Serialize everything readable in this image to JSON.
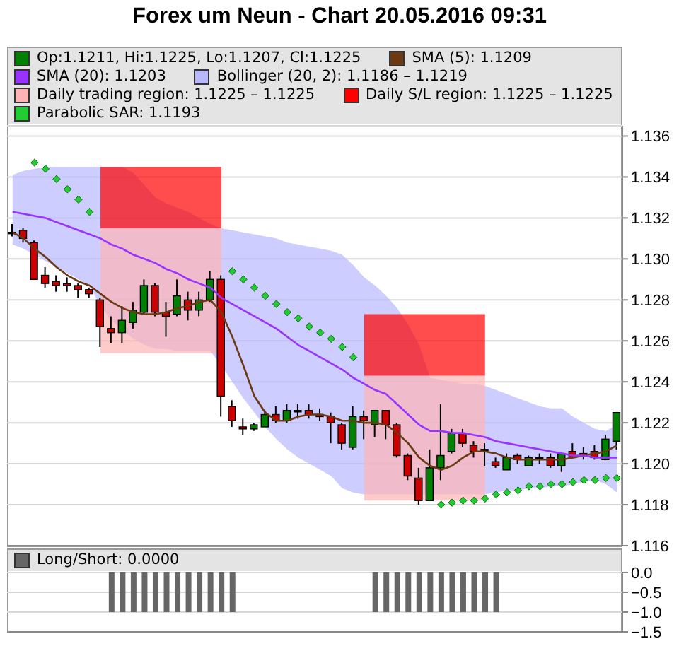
{
  "chart_data": [
    {
      "type": "candlestick",
      "title": "Forex um Neun - Chart 20.05.2016 09:31",
      "categories": [
        null,
        null,
        null,
        null,
        null,
        null,
        null,
        null,
        null,
        null,
        null,
        null,
        null,
        null,
        null,
        null,
        null,
        null,
        null,
        null,
        null,
        null,
        null,
        null,
        null,
        null,
        null,
        null,
        null,
        null,
        null,
        null,
        null,
        null,
        null,
        null,
        null,
        null,
        null,
        null,
        null,
        null,
        null,
        null,
        null,
        null,
        null,
        null,
        null,
        null,
        null,
        null,
        null,
        null,
        null,
        null
      ],
      "ylim": [
        1.116,
        1.1365
      ],
      "yticks": [
        1.116,
        1.118,
        {
          "value": 1.12,
          "label": "1.120"
        },
        1.122,
        1.124,
        1.126,
        1.128,
        {
          "value": 1.13,
          "label": "1.130"
        },
        1.132,
        1.134,
        1.136
      ],
      "grid": "y",
      "legend": "top",
      "tick_labels": "y",
      "series": [
        {
          "type": "candlestick",
          "name": "Op:1.1211, Hi:1.1225, Lo:1.1207, Cl:1.1225",
          "color": "#008000",
          "colors": [
            "#000000",
            "#cc0000",
            "#cc0000",
            "#cc0000",
            "#cc0000",
            "#cc0000",
            "#cc0000",
            "#cc0000",
            "#cc0000",
            "#cc0000",
            "#008000",
            "#008000",
            "#008000",
            "#cc0000",
            "#cc0000",
            "#008000",
            "#cc0000",
            "#008000",
            "#008000",
            "#cc0000",
            "#cc0000",
            "#cc0000",
            "#008000",
            "#008000",
            "#cc0000",
            "#008000",
            "#000000",
            "#cc0000",
            "#cc0000",
            "#cc0000",
            "#cc0000",
            "#008000",
            "#cc0000",
            "#008000",
            "#cc0000",
            "#cc0000",
            "#cc0000",
            "#cc0000",
            "#008000",
            "#008000",
            "#008000",
            "#cc0000",
            "#cc0000",
            "#000000",
            "#cc0000",
            "#008000",
            "#cc0000",
            "#008000",
            "#000000",
            "#cc0000",
            "#008000",
            "#cc0000",
            "#cc0000",
            "#cc0000",
            "#008000",
            "#008000"
          ],
          "ohlc": [
            [
              1.1313,
              1.1317,
              1.1311,
              1.1313
            ],
            [
              1.1314,
              1.1315,
              1.1308,
              1.131
            ],
            [
              1.1308,
              1.1309,
              1.129,
              1.129
            ],
            [
              1.1292,
              1.1296,
              1.1286,
              1.1288
            ],
            [
              1.1289,
              1.1292,
              1.1284,
              1.1287
            ],
            [
              1.1288,
              1.1291,
              1.1284,
              1.1287
            ],
            [
              1.1287,
              1.1288,
              1.1281,
              1.1285
            ],
            [
              1.1285,
              1.1286,
              1.1281,
              1.1283
            ],
            [
              1.128,
              1.1281,
              1.1257,
              1.1267
            ],
            [
              1.1266,
              1.1272,
              1.1259,
              1.1264
            ],
            [
              1.1264,
              1.1277,
              1.1259,
              1.127
            ],
            [
              1.1269,
              1.1279,
              1.1266,
              1.1275
            ],
            [
              1.1274,
              1.129,
              1.1273,
              1.1287
            ],
            [
              1.1287,
              1.1288,
              1.1272,
              1.1274
            ],
            [
              1.1274,
              1.1279,
              1.1262,
              1.1272
            ],
            [
              1.1273,
              1.129,
              1.1272,
              1.1282
            ],
            [
              1.128,
              1.1284,
              1.127,
              1.1275
            ],
            [
              1.1275,
              1.1284,
              1.1272,
              1.128
            ],
            [
              1.128,
              1.1294,
              1.1279,
              1.129
            ],
            [
              1.129,
              1.1292,
              1.1223,
              1.1233
            ],
            [
              1.1228,
              1.1231,
              1.1218,
              1.1221
            ],
            [
              1.1218,
              1.1222,
              1.1214,
              1.1217
            ],
            [
              1.1217,
              1.122,
              1.1216,
              1.1219
            ],
            [
              1.1218,
              1.1226,
              1.1218,
              1.1224
            ],
            [
              1.1224,
              1.1228,
              1.122,
              1.1221
            ],
            [
              1.1221,
              1.1229,
              1.122,
              1.1226
            ],
            [
              1.1226,
              1.1229,
              1.1222,
              1.1226
            ],
            [
              1.1226,
              1.1229,
              1.1222,
              1.1224
            ],
            [
              1.1224,
              1.1227,
              1.1221,
              1.1223
            ],
            [
              1.1223,
              1.1225,
              1.121,
              1.122
            ],
            [
              1.1219,
              1.122,
              1.1207,
              1.121
            ],
            [
              1.1208,
              1.1228,
              1.1207,
              1.1223
            ],
            [
              1.1223,
              1.1226,
              1.1212,
              1.1221
            ],
            [
              1.1219,
              1.1226,
              1.1213,
              1.1226
            ],
            [
              1.1226,
              1.1226,
              1.1212,
              1.1219
            ],
            [
              1.1219,
              1.122,
              1.1203,
              1.1204
            ],
            [
              1.1204,
              1.1205,
              1.1192,
              1.1194
            ],
            [
              1.1193,
              1.1198,
              1.118,
              1.1182
            ],
            [
              1.1182,
              1.1207,
              1.1182,
              1.1198
            ],
            [
              1.1198,
              1.1229,
              1.1192,
              1.1204
            ],
            [
              1.1206,
              1.1217,
              1.1205,
              1.1215
            ],
            [
              1.1215,
              1.1217,
              1.1208,
              1.121
            ],
            [
              1.1209,
              1.1211,
              1.1203,
              1.1206
            ],
            [
              1.1207,
              1.121,
              1.1199,
              1.1207
            ],
            [
              1.1201,
              1.1203,
              1.1198,
              1.1199
            ],
            [
              1.1197,
              1.1205,
              1.1197,
              1.1203
            ],
            [
              1.1204,
              1.1205,
              1.12,
              1.1202
            ],
            [
              1.1199,
              1.1204,
              1.1199,
              1.1203
            ],
            [
              1.1203,
              1.1205,
              1.12,
              1.1203
            ],
            [
              1.1203,
              1.1205,
              1.1198,
              1.1199
            ],
            [
              1.1199,
              1.1205,
              1.1196,
              1.1205
            ],
            [
              1.1206,
              1.121,
              1.1203,
              1.1203
            ],
            [
              1.1205,
              1.1208,
              1.1202,
              1.1204
            ],
            [
              1.1206,
              1.1209,
              1.1202,
              1.1203
            ],
            [
              1.1202,
              1.1214,
              1.1202,
              1.1212
            ],
            [
              1.1211,
              1.1225,
              1.1207,
              1.1225
            ]
          ]
        },
        {
          "type": "line",
          "name": "SMA (5): 1.1209",
          "color": "#6b3a12",
          "values": [
            1.1313,
            1.131,
            1.1305,
            1.1301,
            1.1296,
            1.1292,
            1.1289,
            1.1287,
            1.1283,
            1.1279,
            1.1276,
            1.1274,
            1.1273,
            1.1273,
            1.1274,
            1.1276,
            1.1277,
            1.1279,
            1.128,
            1.1274,
            1.1262,
            1.1248,
            1.1233,
            1.1225,
            1.1221,
            1.1221,
            1.1223,
            1.1224,
            1.1224,
            1.1223,
            1.1221,
            1.1221,
            1.122,
            1.122,
            1.1219,
            1.1215,
            1.121,
            1.1203,
            1.1199,
            1.1197,
            1.1199,
            1.1203,
            1.1206,
            1.1206,
            1.1205,
            1.1203,
            1.1202,
            1.1202,
            1.1202,
            1.1202,
            1.1202,
            1.1203,
            1.1204,
            1.1205,
            1.1206,
            1.1209
          ]
        },
        {
          "type": "line",
          "name": "SMA (20): 1.1203",
          "color": "#9933ff",
          "values": [
            1.1323,
            1.1322,
            1.1321,
            1.132,
            1.1318,
            1.1316,
            1.1314,
            1.1312,
            1.131,
            1.1307,
            1.1305,
            1.1302,
            1.13,
            1.1298,
            1.1295,
            1.1293,
            1.129,
            1.1288,
            1.1286,
            1.1281,
            1.1278,
            1.1275,
            1.1272,
            1.1269,
            1.1266,
            1.1262,
            1.1258,
            1.1255,
            1.1252,
            1.1249,
            1.1246,
            1.1242,
            1.1239,
            1.1236,
            1.1234,
            1.1229,
            1.1224,
            1.1219,
            1.1216,
            1.1216,
            1.1215,
            1.1215,
            1.1214,
            1.1213,
            1.1211,
            1.121,
            1.1209,
            1.1208,
            1.1207,
            1.1206,
            1.1205,
            1.1204,
            1.1204,
            1.1203,
            1.1203,
            1.1203
          ]
        },
        {
          "type": "area",
          "name": "Bollinger (20, 2): 1.1186 – 1.1219",
          "color": "#b8b8ff",
          "values": [
            null,
            null,
            null,
            null,
            null,
            null,
            null,
            null,
            null,
            null,
            null,
            null,
            null,
            null,
            null,
            null,
            null,
            null,
            null,
            null,
            null,
            null,
            null,
            null,
            null,
            null,
            null,
            null,
            null,
            null,
            null,
            null,
            null,
            null,
            null,
            null,
            null,
            null,
            null,
            null,
            null,
            null,
            null,
            null,
            null,
            null,
            null,
            null,
            null,
            null,
            null,
            null,
            null,
            null,
            null,
            null
          ],
          "upper": [
            1.1341,
            1.1343,
            1.1344,
            1.1345,
            1.1345,
            1.1345,
            1.1345,
            1.1345,
            1.1345,
            1.1345,
            1.1345,
            1.1342,
            1.1336,
            1.133,
            1.1327,
            1.1325,
            1.1323,
            1.132,
            1.1317,
            1.1315,
            1.1314,
            1.1313,
            1.1312,
            1.1311,
            1.131,
            1.1308,
            1.1307,
            1.1306,
            1.1305,
            1.1304,
            1.1302,
            1.1297,
            1.1291,
            1.1287,
            1.1282,
            1.1276,
            1.1268,
            1.1258,
            1.1242,
            1.1241,
            1.124,
            1.1239,
            1.1239,
            1.1238,
            1.1236,
            1.1234,
            1.1232,
            1.123,
            1.1228,
            1.1227,
            1.1227,
            1.1223,
            1.122,
            1.1217,
            1.1216,
            1.1219
          ],
          "lower": [
            1.1307,
            1.1305,
            1.1302,
            1.1299,
            1.1296,
            1.1293,
            1.129,
            1.1287,
            1.1277,
            1.127,
            1.1265,
            1.1261,
            1.1258,
            1.1256,
            1.1256,
            1.1255,
            1.1255,
            1.1255,
            1.1255,
            1.1248,
            1.124,
            1.1232,
            1.1225,
            1.1218,
            1.1212,
            1.1207,
            1.1203,
            1.12,
            1.1197,
            1.1194,
            1.1188,
            1.1186,
            1.1185,
            1.1185,
            1.1185,
            1.1185,
            1.1185,
            1.1185,
            1.1185,
            1.1185,
            1.1185,
            1.1185,
            1.1185,
            1.1185,
            1.1186,
            1.1187,
            1.1187,
            1.1188,
            1.1188,
            1.1189,
            1.1189,
            1.119,
            1.1191,
            1.1192,
            1.119,
            1.1186
          ]
        },
        {
          "type": "area",
          "name": "Daily trading region: 1.1225 – 1.1225",
          "color": "#ffb4b4",
          "values": [
            null,
            null,
            null,
            null,
            null,
            null,
            null,
            null,
            null,
            null,
            null,
            null,
            null,
            null,
            null,
            null,
            null,
            null,
            null,
            null,
            null,
            null,
            null,
            null,
            null,
            null,
            null,
            null,
            null,
            null,
            null,
            null,
            null,
            null,
            null,
            null,
            null,
            null,
            null,
            null,
            null,
            null,
            null,
            null,
            null,
            null,
            null,
            null,
            null,
            null,
            null,
            null,
            null,
            null,
            null,
            null
          ],
          "upper": [
            null,
            null,
            null,
            null,
            null,
            null,
            null,
            null,
            1.1315,
            1.1315,
            1.1315,
            1.1315,
            1.1315,
            1.1315,
            1.1315,
            1.1315,
            1.1315,
            1.1315,
            1.1315,
            1.1315,
            null,
            null,
            null,
            null,
            null,
            null,
            null,
            null,
            null,
            null,
            null,
            null,
            1.1243,
            1.1243,
            1.1243,
            1.1243,
            1.1243,
            1.1243,
            1.1243,
            1.1243,
            1.1243,
            1.1243,
            1.1243,
            1.1243,
            null,
            null,
            null,
            null,
            null,
            null,
            null,
            null,
            null,
            null,
            null,
            null
          ],
          "lower": [
            null,
            null,
            null,
            null,
            null,
            null,
            null,
            null,
            1.1254,
            1.1254,
            1.1254,
            1.1254,
            1.1254,
            1.1254,
            1.1254,
            1.1254,
            1.1254,
            1.1254,
            1.1254,
            1.1254,
            null,
            null,
            null,
            null,
            null,
            null,
            null,
            null,
            null,
            null,
            null,
            null,
            1.1182,
            1.1182,
            1.1182,
            1.1182,
            1.1182,
            1.1182,
            1.1182,
            1.1182,
            1.1182,
            1.1182,
            1.1182,
            1.1182,
            null,
            null,
            null,
            null,
            null,
            null,
            null,
            null,
            null,
            null,
            null,
            null
          ]
        },
        {
          "type": "area",
          "name": "Daily S/L region: 1.1225 – 1.1225",
          "color": "#ff0000",
          "values": [
            null,
            null,
            null,
            null,
            null,
            null,
            null,
            null,
            null,
            null,
            null,
            null,
            null,
            null,
            null,
            null,
            null,
            null,
            null,
            null,
            null,
            null,
            null,
            null,
            null,
            null,
            null,
            null,
            null,
            null,
            null,
            null,
            null,
            null,
            null,
            null,
            null,
            null,
            null,
            null,
            null,
            null,
            null,
            null,
            null,
            null,
            null,
            null,
            null,
            null,
            null,
            null,
            null,
            null,
            null,
            null
          ],
          "upper": [
            null,
            null,
            null,
            null,
            null,
            null,
            null,
            null,
            1.1345,
            1.1345,
            1.1345,
            1.1345,
            1.1345,
            1.1345,
            1.1345,
            1.1345,
            1.1345,
            1.1345,
            1.1345,
            1.1345,
            null,
            null,
            null,
            null,
            null,
            null,
            null,
            null,
            null,
            null,
            null,
            null,
            1.1273,
            1.1273,
            1.1273,
            1.1273,
            1.1273,
            1.1273,
            1.1273,
            1.1273,
            1.1273,
            1.1273,
            1.1273,
            1.1273,
            null,
            null,
            null,
            null,
            null,
            null,
            null,
            null,
            null,
            null,
            null,
            null
          ],
          "lower": [
            null,
            null,
            null,
            null,
            null,
            null,
            null,
            null,
            1.1315,
            1.1315,
            1.1315,
            1.1315,
            1.1315,
            1.1315,
            1.1315,
            1.1315,
            1.1315,
            1.1315,
            1.1315,
            1.1315,
            null,
            null,
            null,
            null,
            null,
            null,
            null,
            null,
            null,
            null,
            null,
            null,
            1.1243,
            1.1243,
            1.1243,
            1.1243,
            1.1243,
            1.1243,
            1.1243,
            1.1243,
            1.1243,
            1.1243,
            1.1243,
            1.1243,
            null,
            null,
            null,
            null,
            null,
            null,
            null,
            null,
            null,
            null,
            null,
            null
          ]
        },
        {
          "type": "scatter",
          "name": "Parabolic SAR: 1.1193",
          "color": "#22cc33",
          "marker": "diamond",
          "values": [
            null,
            null,
            1.1347,
            1.1344,
            1.1339,
            1.1334,
            1.1329,
            1.1323,
            null,
            null,
            null,
            null,
            null,
            null,
            null,
            null,
            null,
            null,
            null,
            null,
            1.1294,
            1.129,
            1.1286,
            1.1282,
            1.1278,
            1.1274,
            1.1271,
            1.1267,
            1.1264,
            1.1261,
            1.1257,
            1.1252,
            null,
            null,
            null,
            null,
            null,
            null,
            null,
            1.118,
            1.1181,
            1.1182,
            1.1182,
            1.1183,
            1.1185,
            1.1186,
            1.1187,
            1.1189,
            1.1189,
            1.119,
            1.119,
            1.1191,
            1.1192,
            1.1192,
            1.1193,
            1.1193
          ]
        }
      ]
    },
    {
      "type": "bar",
      "categories": [
        null,
        null,
        null,
        null,
        null,
        null,
        null,
        null,
        null,
        null,
        null,
        null,
        null,
        null,
        null,
        null,
        null,
        null,
        null,
        null,
        null,
        null,
        null,
        null,
        null,
        null,
        null,
        null,
        null,
        null,
        null,
        null,
        null,
        null,
        null,
        null,
        null,
        null,
        null,
        null,
        null,
        null,
        null,
        null,
        null,
        null,
        null,
        null,
        null,
        null,
        null,
        null,
        null,
        null,
        null,
        null
      ],
      "ylim": [
        -1.5,
        0
      ],
      "yticks": [
        {
          "value": 0,
          "label": "0.0"
        },
        {
          "value": -0.5,
          "label": "−0.5"
        },
        {
          "value": -1,
          "label": "−1.0"
        },
        {
          "value": -1.5,
          "label": "−1.5"
        }
      ],
      "grid": "y",
      "legend": "top",
      "tick_labels": "y",
      "series": [
        {
          "name": "Long/Short: 0.0000",
          "color": "#666666",
          "values": [
            0,
            0,
            0,
            0,
            0,
            0,
            0,
            0,
            0,
            -1,
            -1,
            -1,
            -1,
            -1,
            -1,
            -1,
            -1,
            -1,
            -1,
            -1,
            -1,
            0,
            0,
            0,
            0,
            0,
            0,
            0,
            0,
            0,
            0,
            0,
            0,
            -1,
            -1,
            -1,
            -1,
            -1,
            -1,
            -1,
            -1,
            -1,
            -1,
            -1,
            -1,
            0,
            0,
            0,
            0,
            0,
            0,
            0,
            0,
            0,
            0,
            0
          ]
        }
      ]
    }
  ]
}
